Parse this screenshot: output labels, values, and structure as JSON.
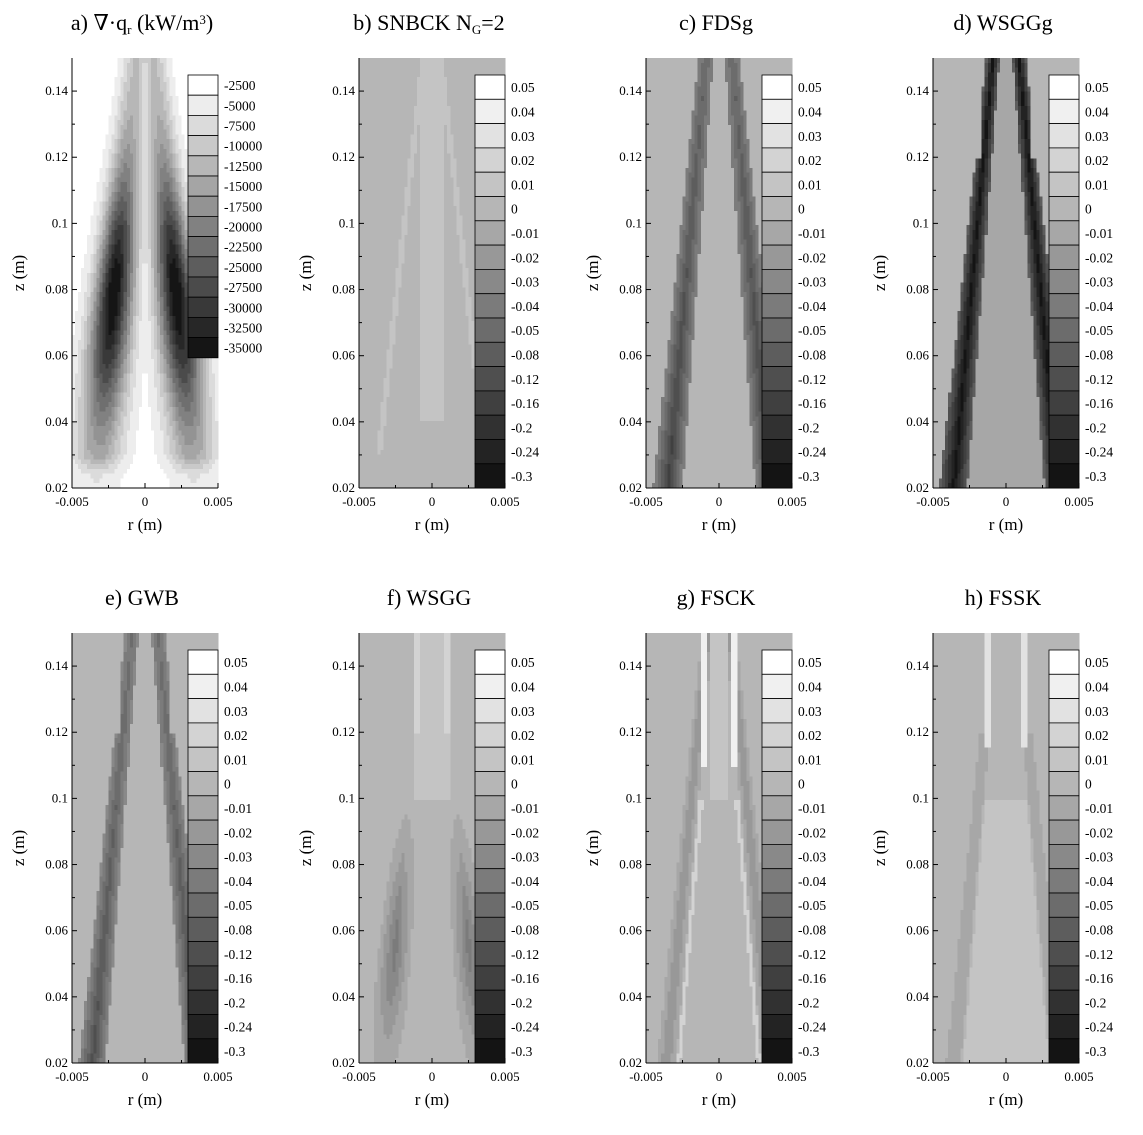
{
  "chart_data": [
    {
      "type": "heatmap",
      "title_parts": [
        "a) ∇·q",
        "r",
        " (kW/m",
        "3",
        ")"
      ],
      "xlabel": "r (m)",
      "ylabel": "z (m)",
      "xlim": [
        -0.005,
        0.005
      ],
      "ylim": [
        0.02,
        0.15
      ],
      "xticks": [
        "-0.005",
        "0",
        "0.005"
      ],
      "yticks": [
        "0.02",
        "0.04",
        "0.06",
        "0.08",
        "0.1",
        "0.12",
        "0.14"
      ],
      "legend_levels": [
        "-2500",
        "-5000",
        "-7500",
        "-10000",
        "-12500",
        "-15000",
        "-17500",
        "-20000",
        "-22500",
        "-25000",
        "-27500",
        "-30000",
        "-32500",
        "-35000"
      ],
      "pattern": "reference"
    },
    {
      "type": "heatmap",
      "title_parts": [
        "b) SNBCK N",
        "G",
        "=2"
      ],
      "xlabel": "r (m)",
      "ylabel": "z (m)",
      "xlim": [
        -0.005,
        0.005
      ],
      "ylim": [
        0.02,
        0.15
      ],
      "xticks": [
        "-0.005",
        "0",
        "0.005"
      ],
      "yticks": [
        "0.02",
        "0.04",
        "0.06",
        "0.08",
        "0.1",
        "0.12",
        "0.14"
      ],
      "legend_levels": [
        "0.05",
        "0.04",
        "0.03",
        "0.02",
        "0.01",
        "0",
        "-0.01",
        "-0.02",
        "-0.03",
        "-0.04",
        "-0.05",
        "-0.08",
        "-0.12",
        "-0.16",
        "-0.2",
        "-0.24",
        "-0.3"
      ],
      "pattern": "snbck"
    },
    {
      "type": "heatmap",
      "title_parts": [
        "c) FDSg"
      ],
      "xlabel": "r (m)",
      "ylabel": "z (m)",
      "xlim": [
        -0.005,
        0.005
      ],
      "ylim": [
        0.02,
        0.15
      ],
      "xticks": [
        "-0.005",
        "0",
        "0.005"
      ],
      "yticks": [
        "0.02",
        "0.04",
        "0.06",
        "0.08",
        "0.1",
        "0.12",
        "0.14"
      ],
      "legend_levels": [
        "0.05",
        "0.04",
        "0.03",
        "0.02",
        "0.01",
        "0",
        "-0.01",
        "-0.02",
        "-0.03",
        "-0.04",
        "-0.05",
        "-0.08",
        "-0.12",
        "-0.16",
        "-0.2",
        "-0.24",
        "-0.3"
      ],
      "pattern": "fdsg"
    },
    {
      "type": "heatmap",
      "title_parts": [
        "d) WSGGg"
      ],
      "xlabel": "r (m)",
      "ylabel": "z (m)",
      "xlim": [
        -0.005,
        0.005
      ],
      "ylim": [
        0.02,
        0.15
      ],
      "xticks": [
        "-0.005",
        "0",
        "0.005"
      ],
      "yticks": [
        "0.02",
        "0.04",
        "0.06",
        "0.08",
        "0.1",
        "0.12",
        "0.14"
      ],
      "legend_levels": [
        "0.05",
        "0.04",
        "0.03",
        "0.02",
        "0.01",
        "0",
        "-0.01",
        "-0.02",
        "-0.03",
        "-0.04",
        "-0.05",
        "-0.08",
        "-0.12",
        "-0.16",
        "-0.2",
        "-0.24",
        "-0.3"
      ],
      "pattern": "wsggg"
    },
    {
      "type": "heatmap",
      "title_parts": [
        "e) GWB"
      ],
      "xlabel": "r (m)",
      "ylabel": "z (m)",
      "xlim": [
        -0.005,
        0.005
      ],
      "ylim": [
        0.02,
        0.15
      ],
      "xticks": [
        "-0.005",
        "0",
        "0.005"
      ],
      "yticks": [
        "0.02",
        "0.04",
        "0.06",
        "0.08",
        "0.1",
        "0.12",
        "0.14"
      ],
      "legend_levels": [
        "0.05",
        "0.04",
        "0.03",
        "0.02",
        "0.01",
        "0",
        "-0.01",
        "-0.02",
        "-0.03",
        "-0.04",
        "-0.05",
        "-0.08",
        "-0.12",
        "-0.16",
        "-0.2",
        "-0.24",
        "-0.3"
      ],
      "pattern": "gwb"
    },
    {
      "type": "heatmap",
      "title_parts": [
        "f) WSGG"
      ],
      "xlabel": "r (m)",
      "ylabel": "z (m)",
      "xlim": [
        -0.005,
        0.005
      ],
      "ylim": [
        0.02,
        0.15
      ],
      "xticks": [
        "-0.005",
        "0",
        "0.005"
      ],
      "yticks": [
        "0.02",
        "0.04",
        "0.06",
        "0.08",
        "0.1",
        "0.12",
        "0.14"
      ],
      "legend_levels": [
        "0.05",
        "0.04",
        "0.03",
        "0.02",
        "0.01",
        "0",
        "-0.01",
        "-0.02",
        "-0.03",
        "-0.04",
        "-0.05",
        "-0.08",
        "-0.12",
        "-0.16",
        "-0.2",
        "-0.24",
        "-0.3"
      ],
      "pattern": "wsgg"
    },
    {
      "type": "heatmap",
      "title_parts": [
        "g) FSCK"
      ],
      "xlabel": "r (m)",
      "ylabel": "z (m)",
      "xlim": [
        -0.005,
        0.005
      ],
      "ylim": [
        0.02,
        0.15
      ],
      "xticks": [
        "-0.005",
        "0",
        "0.005"
      ],
      "yticks": [
        "0.02",
        "0.04",
        "0.06",
        "0.08",
        "0.1",
        "0.12",
        "0.14"
      ],
      "legend_levels": [
        "0.05",
        "0.04",
        "0.03",
        "0.02",
        "0.01",
        "0",
        "-0.01",
        "-0.02",
        "-0.03",
        "-0.04",
        "-0.05",
        "-0.08",
        "-0.12",
        "-0.16",
        "-0.2",
        "-0.24",
        "-0.3"
      ],
      "pattern": "fsck"
    },
    {
      "type": "heatmap",
      "title_parts": [
        "h) FSSK"
      ],
      "xlabel": "r (m)",
      "ylabel": "z (m)",
      "xlim": [
        -0.005,
        0.005
      ],
      "ylim": [
        0.02,
        0.15
      ],
      "xticks": [
        "-0.005",
        "0",
        "0.005"
      ],
      "yticks": [
        "0.02",
        "0.04",
        "0.06",
        "0.08",
        "0.1",
        "0.12",
        "0.14"
      ],
      "legend_levels": [
        "0.05",
        "0.04",
        "0.03",
        "0.02",
        "0.01",
        "0",
        "-0.01",
        "-0.02",
        "-0.03",
        "-0.04",
        "-0.05",
        "-0.08",
        "-0.12",
        "-0.16",
        "-0.2",
        "-0.24",
        "-0.3"
      ],
      "pattern": "fssk"
    }
  ]
}
